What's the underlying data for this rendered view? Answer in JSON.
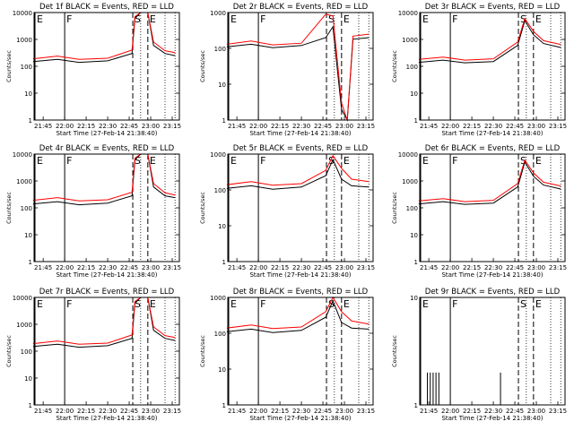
{
  "chart_data": [
    {
      "type": "line",
      "title": "Det 1f BLACK = Events, RED = LLD",
      "ylabel": "Counts/sec",
      "xlabel": "Start Time (27-Feb-14 21:38:40)",
      "ylim": [
        1,
        10000
      ],
      "yscale": "log",
      "yticks": [
        "1",
        "10",
        "100",
        "1000",
        "10000"
      ],
      "xlim": [
        "21:38:40",
        "23:20:00"
      ],
      "xticks": [
        "21:45",
        "22:00",
        "22:15",
        "22:30",
        "22:45",
        "23:00",
        "23:15"
      ],
      "marker_labels": [
        "E",
        "F",
        "S",
        "E"
      ],
      "marker_times": [
        "21:38:40",
        "22:00:00",
        "22:47:30",
        "22:58:00"
      ],
      "series": [
        {
          "name": "BLACK = Events",
          "color": "#000000",
          "x": [
            "21:38",
            "21:55",
            "22:10",
            "22:30",
            "22:47",
            "22:49",
            "22:53",
            "22:58",
            "23:02",
            "23:10",
            "23:17"
          ],
          "values": [
            150,
            180,
            140,
            160,
            300,
            6000,
            10000,
            10000,
            600,
            300,
            250
          ]
        },
        {
          "name": "RED = LLD",
          "color": "#ff0000",
          "x": [
            "21:38",
            "21:55",
            "22:10",
            "22:30",
            "22:47",
            "22:49",
            "22:53",
            "22:58",
            "23:02",
            "23:10",
            "23:17"
          ],
          "values": [
            190,
            240,
            180,
            200,
            400,
            7000,
            10000,
            10000,
            800,
            380,
            320
          ]
        }
      ]
    },
    {
      "type": "line",
      "title": "Det 2r BLACK = Events, RED = LLD",
      "ylabel": "Counts/sec",
      "xlabel": "Start Time (27-Feb-14 21:38:40)",
      "ylim": [
        1,
        1000
      ],
      "yscale": "log",
      "yticks": [
        "1",
        "10",
        "100",
        "1000"
      ],
      "xlim": [
        "21:38:40",
        "23:20:00"
      ],
      "xticks": [
        "21:45",
        "22:00",
        "22:15",
        "22:30",
        "22:45",
        "23:00",
        "23:15"
      ],
      "marker_labels": [
        "E",
        "F",
        "S",
        "E"
      ],
      "marker_times": [
        "21:38:40",
        "22:00:00",
        "22:47:30",
        "22:58:00"
      ],
      "series": [
        {
          "name": "BLACK = Events",
          "color": "#000000",
          "x": [
            "21:38",
            "21:55",
            "22:10",
            "22:30",
            "22:47",
            "22:52",
            "22:58",
            "23:02",
            "23:06",
            "23:17"
          ],
          "values": [
            110,
            130,
            105,
            120,
            200,
            400,
            2,
            1,
            180,
            200
          ]
        },
        {
          "name": "RED = LLD",
          "color": "#ff0000",
          "x": [
            "21:38",
            "21:55",
            "22:10",
            "22:30",
            "22:47",
            "22:52",
            "22:58",
            "23:02",
            "23:06",
            "23:17"
          ],
          "values": [
            130,
            160,
            125,
            140,
            900,
            800,
            3,
            1,
            220,
            250
          ]
        }
      ]
    },
    {
      "type": "line",
      "title": "Det 3r BLACK = Events, RED = LLD",
      "ylabel": "Counts/sec",
      "xlabel": "Start Time (27-Feb-14 21:38:40)",
      "ylim": [
        1,
        10000
      ],
      "yscale": "log",
      "yticks": [
        "1",
        "10",
        "100",
        "1000",
        "10000"
      ],
      "xlim": [
        "21:38:40",
        "23:20:00"
      ],
      "xticks": [
        "21:45",
        "22:00",
        "22:15",
        "22:30",
        "22:45",
        "23:00",
        "23:15"
      ],
      "marker_labels": [
        "E",
        "F",
        "S",
        "E"
      ],
      "marker_times": [
        "21:38:40",
        "22:00:00",
        "22:47:30",
        "22:58:00"
      ],
      "series": [
        {
          "name": "BLACK = Events",
          "color": "#000000",
          "x": [
            "21:38",
            "21:55",
            "22:10",
            "22:30",
            "22:47",
            "22:52",
            "22:58",
            "23:05",
            "23:17"
          ],
          "values": [
            140,
            170,
            135,
            150,
            600,
            5000,
            1500,
            700,
            500
          ]
        },
        {
          "name": "RED = LLD",
          "color": "#ff0000",
          "x": [
            "21:38",
            "21:55",
            "22:10",
            "22:30",
            "22:47",
            "22:52",
            "22:58",
            "23:05",
            "23:17"
          ],
          "values": [
            180,
            220,
            170,
            190,
            800,
            6000,
            2000,
            900,
            650
          ]
        }
      ]
    },
    {
      "type": "line",
      "title": "Det 4r BLACK = Events, RED = LLD",
      "ylabel": "Counts/sec",
      "xlabel": "Start Time (27-Feb-14 21:38:40)",
      "ylim": [
        1,
        10000
      ],
      "yscale": "log",
      "yticks": [
        "1",
        "10",
        "100",
        "1000",
        "10000"
      ],
      "xlim": [
        "21:38:40",
        "23:20:00"
      ],
      "xticks": [
        "21:45",
        "22:00",
        "22:15",
        "22:30",
        "22:45",
        "23:00",
        "23:15"
      ],
      "marker_labels": [
        "E",
        "F",
        "S",
        "E"
      ],
      "marker_times": [
        "21:38:40",
        "22:00:00",
        "22:47:30",
        "22:58:00"
      ],
      "series": [
        {
          "name": "BLACK = Events",
          "color": "#000000",
          "x": [
            "21:38",
            "21:55",
            "22:10",
            "22:30",
            "22:47",
            "22:49",
            "22:53",
            "22:58",
            "23:02",
            "23:10",
            "23:17"
          ],
          "values": [
            140,
            170,
            130,
            150,
            280,
            6000,
            10000,
            10000,
            600,
            280,
            240
          ]
        },
        {
          "name": "RED = LLD",
          "color": "#ff0000",
          "x": [
            "21:38",
            "21:55",
            "22:10",
            "22:30",
            "22:47",
            "22:49",
            "22:53",
            "22:58",
            "23:02",
            "23:10",
            "23:17"
          ],
          "values": [
            190,
            240,
            180,
            200,
            380,
            7000,
            10000,
            10000,
            800,
            360,
            300
          ]
        }
      ]
    },
    {
      "type": "line",
      "title": "Det 5r BLACK = Events, RED = LLD",
      "ylabel": "Counts/sec",
      "xlabel": "Start Time (27-Feb-14 21:38:40)",
      "ylim": [
        1,
        1000
      ],
      "yscale": "log",
      "yticks": [
        "1",
        "10",
        "100",
        "1000"
      ],
      "xlim": [
        "21:38:40",
        "23:20:00"
      ],
      "xticks": [
        "21:45",
        "22:00",
        "22:15",
        "22:30",
        "22:45",
        "23:00",
        "23:15"
      ],
      "marker_labels": [
        "E",
        "F",
        "S",
        "E"
      ],
      "marker_times": [
        "21:38:40",
        "22:00:00",
        "22:47:30",
        "22:58:00"
      ],
      "series": [
        {
          "name": "BLACK = Events",
          "color": "#000000",
          "x": [
            "21:38",
            "21:55",
            "22:10",
            "22:30",
            "22:47",
            "22:52",
            "22:58",
            "23:05",
            "23:17"
          ],
          "values": [
            110,
            130,
            105,
            120,
            250,
            700,
            200,
            130,
            120
          ]
        },
        {
          "name": "RED = LLD",
          "color": "#ff0000",
          "x": [
            "21:38",
            "21:55",
            "22:10",
            "22:30",
            "22:47",
            "22:52",
            "22:58",
            "23:05",
            "23:17"
          ],
          "values": [
            140,
            170,
            135,
            150,
            350,
            900,
            400,
            200,
            170
          ]
        }
      ]
    },
    {
      "type": "line",
      "title": "Det 6r BLACK = Events, RED = LLD",
      "ylabel": "Counts/sec",
      "xlabel": "Start Time (27-Feb-14 21:38:40)",
      "ylim": [
        1,
        10000
      ],
      "yscale": "log",
      "yticks": [
        "1",
        "10",
        "100",
        "1000",
        "10000"
      ],
      "xlim": [
        "21:38:40",
        "23:20:00"
      ],
      "xticks": [
        "21:45",
        "22:00",
        "22:15",
        "22:30",
        "22:45",
        "23:00",
        "23:15"
      ],
      "marker_labels": [
        "E",
        "F",
        "S",
        "E"
      ],
      "marker_times": [
        "21:38:40",
        "22:00:00",
        "22:47:30",
        "22:58:00"
      ],
      "series": [
        {
          "name": "BLACK = Events",
          "color": "#000000",
          "x": [
            "21:38",
            "21:55",
            "22:10",
            "22:30",
            "22:47",
            "22:52",
            "22:58",
            "23:05",
            "23:17"
          ],
          "values": [
            140,
            170,
            135,
            150,
            600,
            5000,
            1500,
            700,
            500
          ]
        },
        {
          "name": "RED = LLD",
          "color": "#ff0000",
          "x": [
            "21:38",
            "21:55",
            "22:10",
            "22:30",
            "22:47",
            "22:52",
            "22:58",
            "23:05",
            "23:17"
          ],
          "values": [
            180,
            220,
            170,
            190,
            800,
            6000,
            2000,
            900,
            650
          ]
        }
      ]
    },
    {
      "type": "line",
      "title": "Det 7r BLACK = Events, RED = LLD",
      "ylabel": "Counts/sec",
      "xlabel": "Start Time (27-Feb-14 21:38:40)",
      "ylim": [
        1,
        10000
      ],
      "yscale": "log",
      "yticks": [
        "1",
        "10",
        "100",
        "1000",
        "10000"
      ],
      "xlim": [
        "21:38:40",
        "23:20:00"
      ],
      "xticks": [
        "21:45",
        "22:00",
        "22:15",
        "22:30",
        "22:45",
        "23:00",
        "23:15"
      ],
      "marker_labels": [
        "E",
        "F",
        "S",
        "E"
      ],
      "marker_times": [
        "21:38:40",
        "22:00:00",
        "22:47:30",
        "22:58:00"
      ],
      "series": [
        {
          "name": "BLACK = Events",
          "color": "#000000",
          "x": [
            "21:38",
            "21:55",
            "22:10",
            "22:30",
            "22:47",
            "22:49",
            "22:53",
            "22:58",
            "23:02",
            "23:10",
            "23:17"
          ],
          "values": [
            150,
            180,
            140,
            160,
            300,
            6000,
            10000,
            10000,
            600,
            300,
            250
          ]
        },
        {
          "name": "RED = LLD",
          "color": "#ff0000",
          "x": [
            "21:38",
            "21:55",
            "22:10",
            "22:30",
            "22:47",
            "22:49",
            "22:53",
            "22:58",
            "23:02",
            "23:10",
            "23:17"
          ],
          "values": [
            190,
            240,
            180,
            200,
            400,
            7000,
            10000,
            10000,
            800,
            380,
            320
          ]
        }
      ]
    },
    {
      "type": "line",
      "title": "Det 8r BLACK = Events, RED = LLD",
      "ylabel": "Counts/sec",
      "xlabel": "Start Time (27-Feb-14 21:38:40)",
      "ylim": [
        1,
        1000
      ],
      "yscale": "log",
      "yticks": [
        "1",
        "10",
        "100",
        "1000"
      ],
      "xlim": [
        "21:38:40",
        "23:20:00"
      ],
      "xticks": [
        "21:45",
        "22:00",
        "22:15",
        "22:30",
        "22:45",
        "23:00",
        "23:15"
      ],
      "marker_labels": [
        "E",
        "F",
        "S",
        "E"
      ],
      "marker_times": [
        "21:38:40",
        "22:00:00",
        "22:47:30",
        "22:58:00"
      ],
      "series": [
        {
          "name": "BLACK = Events",
          "color": "#000000",
          "x": [
            "21:38",
            "21:55",
            "22:10",
            "22:30",
            "22:47",
            "22:52",
            "22:58",
            "23:05",
            "23:17"
          ],
          "values": [
            110,
            130,
            105,
            120,
            280,
            800,
            200,
            140,
            130
          ]
        },
        {
          "name": "RED = LLD",
          "color": "#ff0000",
          "x": [
            "21:38",
            "21:55",
            "22:10",
            "22:30",
            "22:47",
            "22:52",
            "22:58",
            "23:05",
            "23:17"
          ],
          "values": [
            140,
            170,
            135,
            150,
            400,
            1000,
            400,
            220,
            180
          ]
        }
      ]
    },
    {
      "type": "line",
      "title": "Det 9r BLACK = Events, RED = LLD",
      "ylabel": "Counts/sec",
      "xlabel": "Start Time (27-Feb-14 21:38:40)",
      "ylim": [
        1,
        10
      ],
      "yscale": "log",
      "yticks": [
        "1",
        "10"
      ],
      "xlim": [
        "21:38:40",
        "23:20:00"
      ],
      "xticks": [
        "21:45",
        "22:00",
        "22:15",
        "22:30",
        "22:45",
        "23:00",
        "23:15"
      ],
      "marker_labels": [
        "E",
        "F",
        "S",
        "E"
      ],
      "marker_times": [
        "21:38:40",
        "22:00:00",
        "22:47:30",
        "22:58:00"
      ],
      "series": [
        {
          "name": "BLACK = Events",
          "color": "#000000",
          "x": [
            "21:44",
            "21:46",
            "21:48",
            "21:50",
            "21:52",
            "22:35"
          ],
          "values": [
            2,
            2,
            2,
            2,
            2,
            2
          ]
        },
        {
          "name": "RED = LLD",
          "color": "#ff0000",
          "x": [],
          "values": []
        }
      ]
    }
  ]
}
